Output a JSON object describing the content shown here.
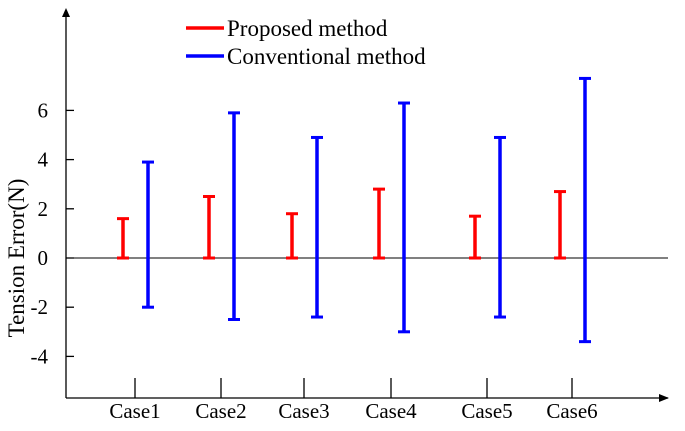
{
  "chart_data": {
    "type": "error-bar",
    "title": "",
    "xlabel": "",
    "ylabel": "Tension Error(N)",
    "ylim": [
      -5.5,
      10
    ],
    "yticks": [
      -4,
      -2,
      0,
      2,
      4,
      6
    ],
    "yticklabels": [
      "-4",
      "-2",
      "0",
      "2",
      "4",
      "6"
    ],
    "grid": false,
    "legend_position": "top-center",
    "categories": [
      "Case1",
      "Case2",
      "Case3",
      "Case4",
      "Case5",
      "Case6"
    ],
    "series": [
      {
        "name": "Proposed method",
        "color": "#ff0000",
        "low": [
          0,
          0,
          0,
          0,
          0,
          0
        ],
        "high": [
          1.6,
          2.5,
          1.8,
          2.8,
          1.7,
          2.7
        ]
      },
      {
        "name": "Conventional method",
        "color": "#0000ff",
        "low": [
          -2.0,
          -2.5,
          -2.4,
          -3.0,
          -2.4,
          -3.4
        ],
        "high": [
          3.9,
          5.9,
          4.9,
          6.3,
          4.9,
          7.3
        ]
      }
    ]
  }
}
